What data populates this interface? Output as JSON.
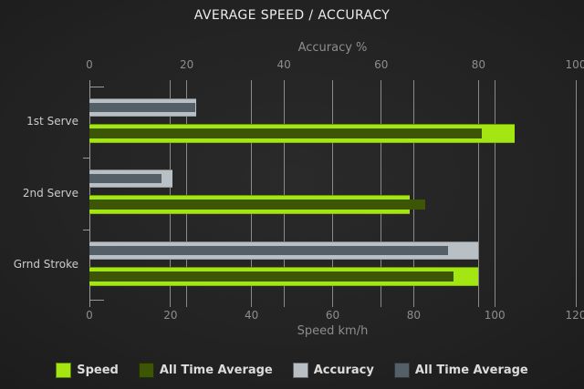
{
  "title": "AVERAGE SPEED / ACCURACY",
  "chart_data": {
    "type": "bar",
    "orientation": "horizontal",
    "categories": [
      "1st Serve",
      "2nd Serve",
      "Grnd Stroke"
    ],
    "axes": {
      "top": {
        "label": "Accuracy %",
        "min": 0,
        "max": 100,
        "ticks": [
          0,
          20,
          40,
          60,
          80,
          100
        ]
      },
      "bottom": {
        "label": "Speed km/h",
        "min": 0,
        "max": 120,
        "ticks": [
          0,
          20,
          40,
          60,
          80,
          100,
          120
        ]
      }
    },
    "series": [
      {
        "name": "Speed",
        "axis": "bottom",
        "role": "main",
        "color": "#a4e612",
        "values": [
          105,
          79,
          96
        ]
      },
      {
        "name": "All Time Average",
        "axis": "bottom",
        "role": "average",
        "color": "#3c5606",
        "values": [
          97,
          83,
          90
        ]
      },
      {
        "name": "Accuracy",
        "axis": "top",
        "role": "main",
        "color": "#b9c0c5",
        "values": [
          22,
          17,
          80
        ]
      },
      {
        "name": "All Time Average",
        "axis": "top",
        "role": "average",
        "color": "#555f68",
        "values": [
          22,
          15,
          74
        ]
      }
    ],
    "grid": true,
    "legend_position": "bottom",
    "colors": {
      "background": "#222222",
      "gridline": "#8a8a8a",
      "title_text": "#ececec",
      "axis_text": "#8d8d8d",
      "category_text": "#cbcbcb",
      "legend_text": "#dcdcdc"
    }
  }
}
